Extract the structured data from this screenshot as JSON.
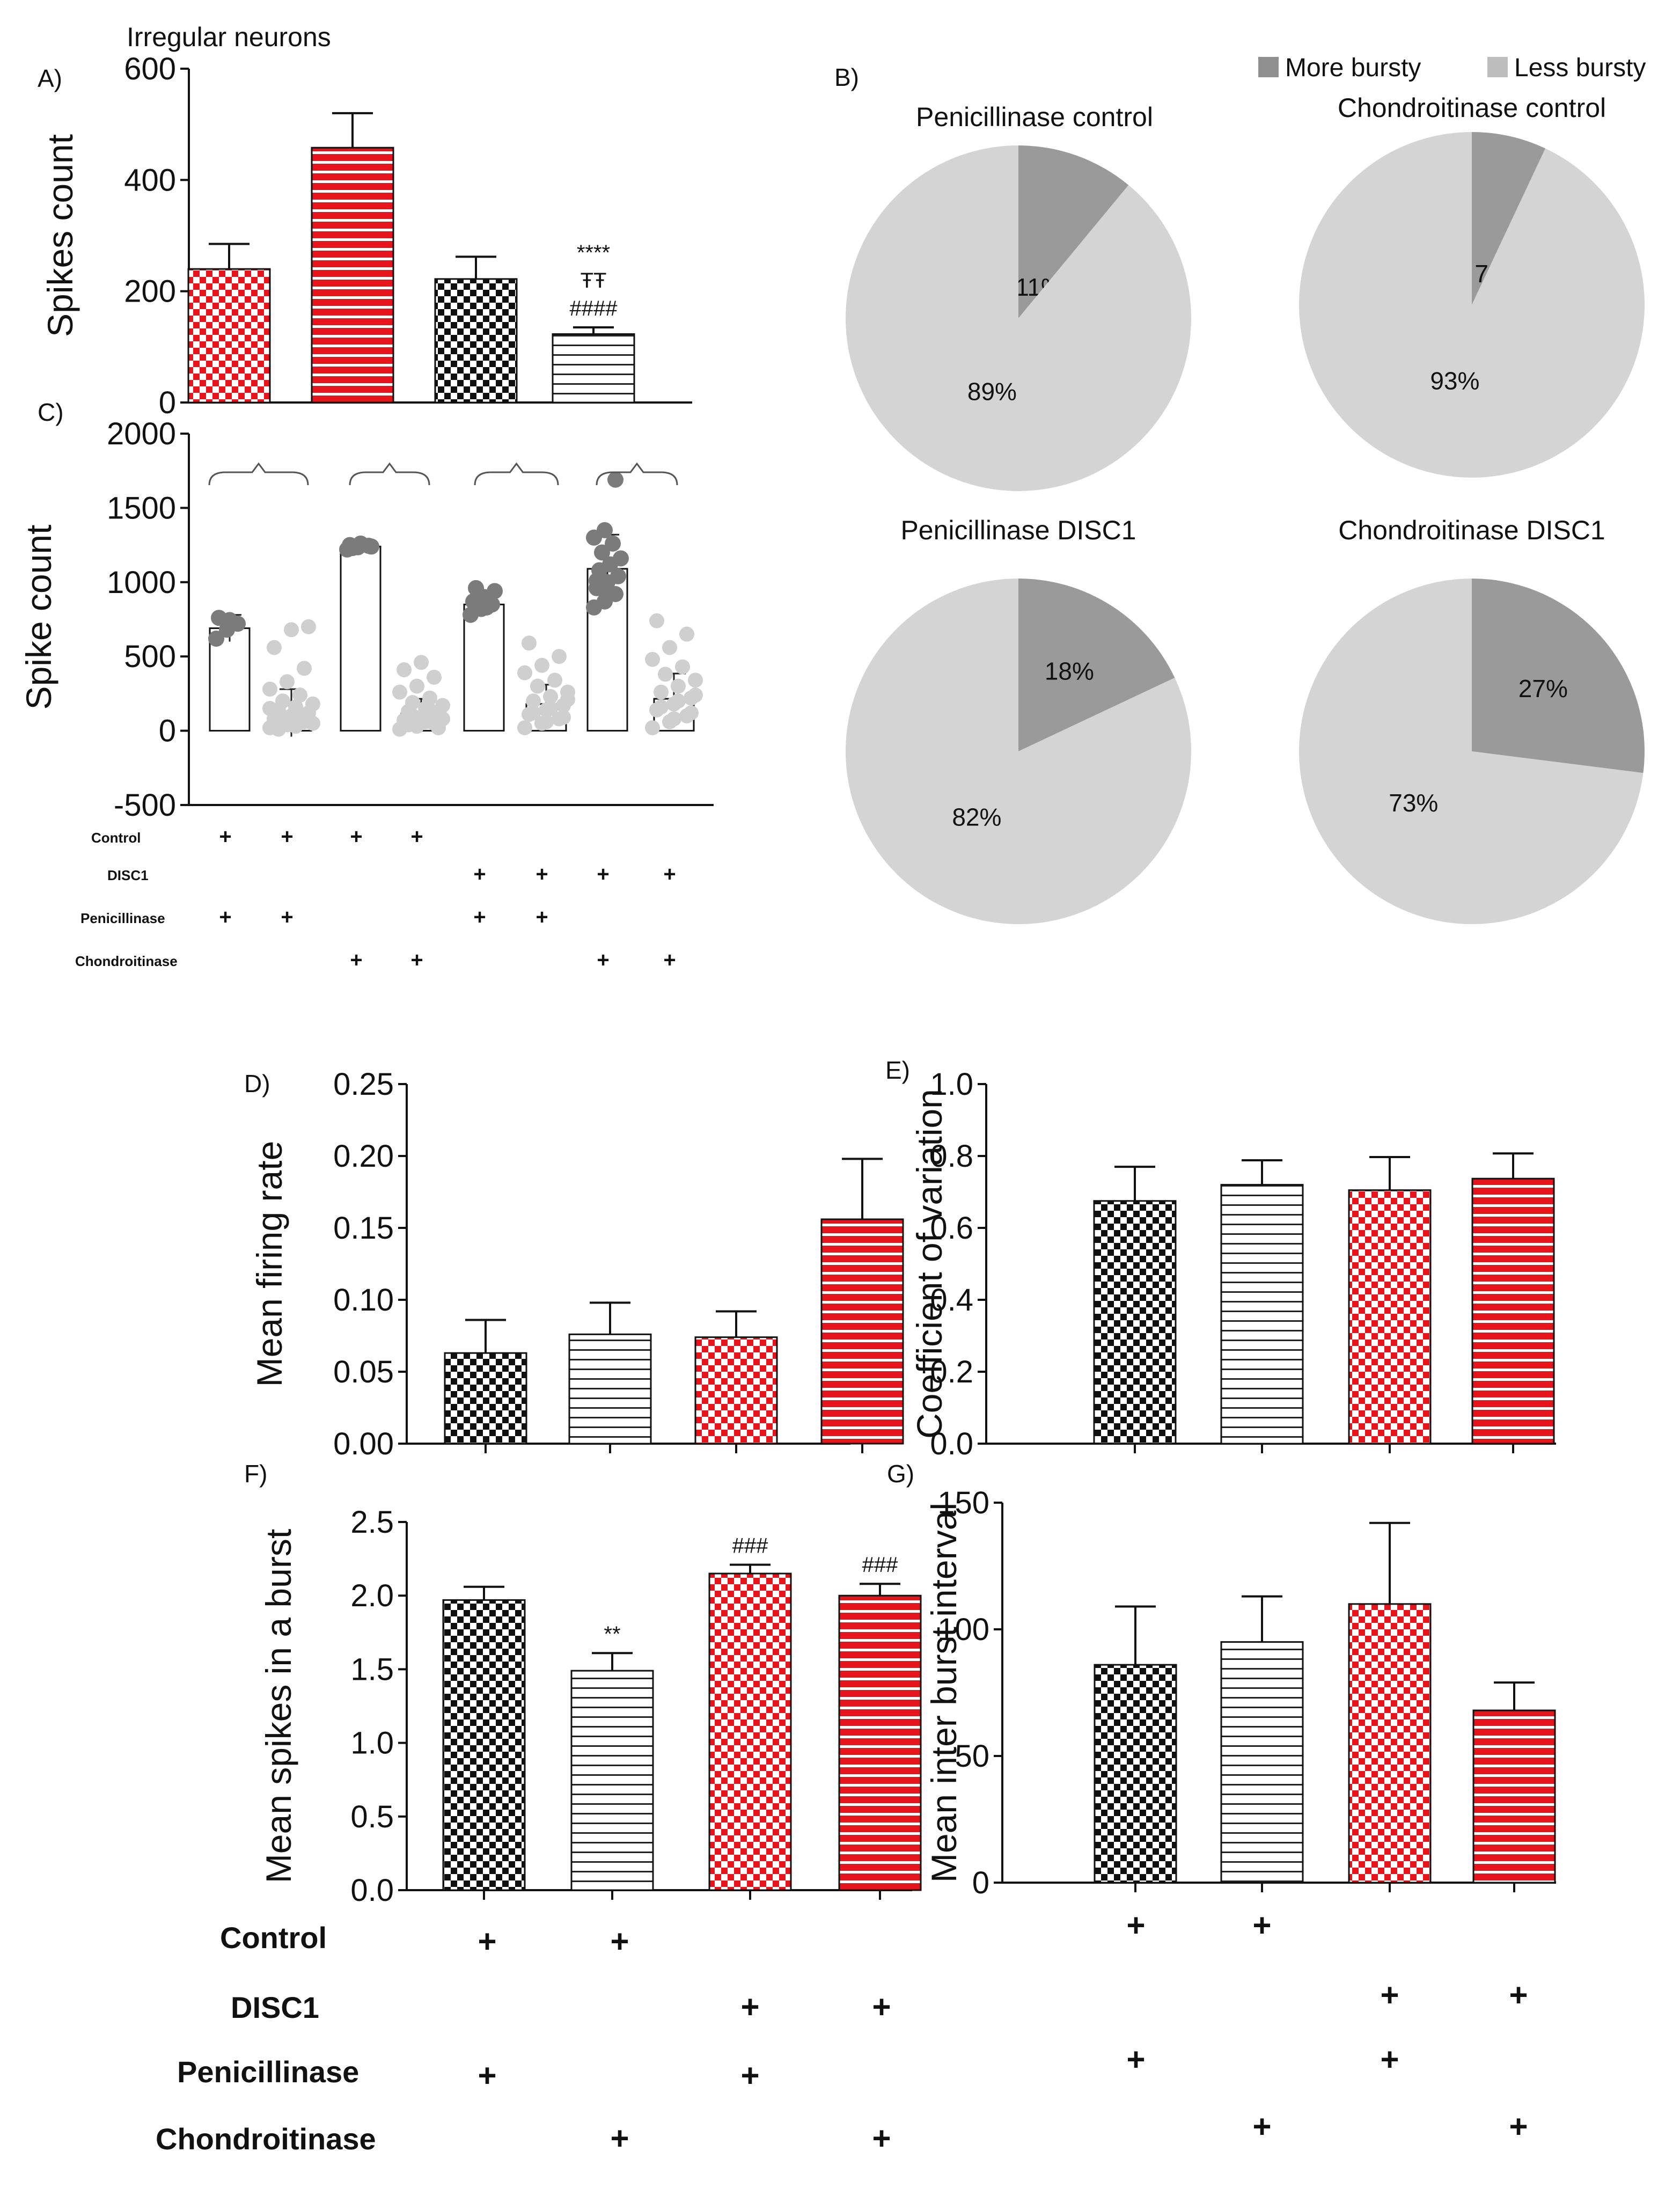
{
  "colors": {
    "red": "#e8141b",
    "black": "#111111",
    "dark_slice": "#9a9a9a",
    "light_slice": "#d4d4d4",
    "scatter_dark": "#7b7b7b",
    "scatter_light": "#cfcfcf"
  },
  "conditions": [
    "Control",
    "DISC1",
    "Penicillinase",
    "Chondroitinase"
  ],
  "chart_data": [
    {
      "id": "A",
      "type": "bar",
      "panel_label": "A)",
      "title": "Irregular neurons",
      "ylabel": "Spikes count",
      "ylim": [
        0,
        600
      ],
      "yticks": [
        "0",
        "200",
        "400",
        "600"
      ],
      "bars": [
        {
          "value": 240,
          "err": 45,
          "pattern": "red-check",
          "annotation": []
        },
        {
          "value": 458,
          "err": 62,
          "pattern": "red-stripe",
          "annotation": []
        },
        {
          "value": 222,
          "err": 40,
          "pattern": "black-check",
          "annotation": []
        },
        {
          "value": 123,
          "err": 12,
          "pattern": "white-stripe",
          "annotation": [
            "****",
            "ŦŦ",
            "####"
          ]
        }
      ]
    },
    {
      "id": "B",
      "type": "pie",
      "panel_label": "B)",
      "legend": [
        "More bursty",
        "Less bursty"
      ],
      "pies": [
        {
          "title": "Penicillinase control",
          "values": [
            11,
            89
          ],
          "labels": [
            "11%",
            "89%"
          ]
        },
        {
          "title": "Chondroitinase control",
          "values": [
            7,
            93
          ],
          "labels": [
            "7%",
            "93%"
          ]
        },
        {
          "title": "Penicillinase DISC1",
          "values": [
            18,
            82
          ],
          "labels": [
            "18%",
            "82%"
          ]
        },
        {
          "title": "Chondroitinase DISC1",
          "values": [
            27,
            73
          ],
          "labels": [
            "27%",
            "73%"
          ]
        }
      ]
    },
    {
      "id": "C",
      "type": "scatter",
      "panel_label": "C)",
      "ylabel": "Spike count",
      "ylim": [
        -500,
        2000
      ],
      "yticks": [
        "-500",
        "0",
        "500",
        "1000",
        "1500",
        "2000"
      ],
      "groups": [
        {
          "mean": 690,
          "err": 90,
          "kind": "dark",
          "points": [
            620,
            680,
            720,
            760,
            745
          ]
        },
        {
          "mean": 120,
          "err": 160,
          "kind": "light",
          "points": [
            20,
            40,
            60,
            80,
            100,
            120,
            140,
            160,
            180,
            200,
            240,
            280,
            330,
            420,
            560,
            680,
            700,
            10,
            30,
            50,
            90,
            110,
            150,
            70
          ]
        },
        {
          "mean": 1240,
          "err": 20,
          "kind": "dark",
          "points": [
            1220,
            1235,
            1245,
            1250,
            1260,
            1240,
            1230
          ]
        },
        {
          "mean": 115,
          "err": 100,
          "kind": "light",
          "points": [
            10,
            30,
            50,
            70,
            90,
            110,
            130,
            150,
            170,
            190,
            220,
            260,
            300,
            360,
            410,
            460,
            20,
            40,
            60,
            80,
            100,
            140
          ]
        },
        {
          "mean": 850,
          "err": 60,
          "kind": "dark",
          "points": [
            780,
            820,
            850,
            870,
            900,
            940,
            960,
            830
          ]
        },
        {
          "mean": 180,
          "err": 130,
          "kind": "light",
          "points": [
            20,
            50,
            80,
            110,
            140,
            170,
            200,
            230,
            260,
            300,
            340,
            390,
            440,
            500,
            590,
            60,
            90,
            120,
            150,
            210
          ]
        },
        {
          "mean": 1090,
          "err": 230,
          "kind": "dark",
          "points": [
            830,
            870,
            920,
            960,
            1000,
            1040,
            1080,
            1120,
            1160,
            1200,
            1260,
            1300,
            1350,
            1690,
            1010,
            940
          ]
        },
        {
          "mean": 215,
          "err": 170,
          "kind": "light",
          "points": [
            20,
            60,
            100,
            140,
            180,
            220,
            260,
            300,
            340,
            380,
            430,
            480,
            560,
            650,
            740,
            80,
            120,
            160,
            200,
            240
          ]
        }
      ],
      "signs": [
        [
          "+",
          "+",
          "+",
          "+",
          "",
          "",
          "",
          ""
        ],
        [
          "",
          "",
          "",
          "",
          "+",
          "+",
          "+",
          "+"
        ],
        [
          "+",
          "+",
          "",
          "",
          "+",
          "+",
          "",
          ""
        ],
        [
          "",
          "",
          "+",
          "+",
          "",
          "",
          "+",
          "+"
        ]
      ]
    },
    {
      "id": "D",
      "type": "bar",
      "panel_label": "D)",
      "ylabel": "Mean firing rate",
      "ylim": [
        0,
        0.25
      ],
      "yticks": [
        "0.00",
        "0.05",
        "0.10",
        "0.15",
        "0.20",
        "0.25"
      ],
      "bars": [
        {
          "value": 0.063,
          "err": 0.023,
          "pattern": "black-check",
          "annotation": []
        },
        {
          "value": 0.076,
          "err": 0.022,
          "pattern": "white-stripe",
          "annotation": []
        },
        {
          "value": 0.074,
          "err": 0.018,
          "pattern": "red-check",
          "annotation": []
        },
        {
          "value": 0.156,
          "err": 0.042,
          "pattern": "red-stripe",
          "annotation": []
        }
      ]
    },
    {
      "id": "E",
      "type": "bar",
      "panel_label": "E)",
      "ylabel": "Coefficient of variation",
      "ylim": [
        0,
        1.0
      ],
      "yticks": [
        "0.0",
        "0.2",
        "0.4",
        "0.6",
        "0.8",
        "1.0"
      ],
      "bars": [
        {
          "value": 0.675,
          "err": 0.095,
          "pattern": "black-check",
          "annotation": []
        },
        {
          "value": 0.72,
          "err": 0.068,
          "pattern": "white-stripe",
          "annotation": []
        },
        {
          "value": 0.705,
          "err": 0.092,
          "pattern": "red-check",
          "annotation": []
        },
        {
          "value": 0.737,
          "err": 0.07,
          "pattern": "red-stripe",
          "annotation": []
        }
      ]
    },
    {
      "id": "F",
      "type": "bar",
      "panel_label": "F)",
      "ylabel": "Mean spikes in a burst",
      "ylim": [
        0,
        2.5
      ],
      "yticks": [
        "0.0",
        "0.5",
        "1.0",
        "1.5",
        "2.0",
        "2.5"
      ],
      "bars": [
        {
          "value": 1.97,
          "err": 0.09,
          "pattern": "black-check",
          "annotation": []
        },
        {
          "value": 1.49,
          "err": 0.12,
          "pattern": "white-stripe",
          "annotation": [
            "**"
          ]
        },
        {
          "value": 2.15,
          "err": 0.06,
          "pattern": "red-check",
          "annotation": [
            "###"
          ]
        },
        {
          "value": 2.0,
          "err": 0.08,
          "pattern": "red-stripe",
          "annotation": [
            "###"
          ]
        }
      ]
    },
    {
      "id": "G",
      "type": "bar",
      "panel_label": "G)",
      "ylabel": "Mean inter burst interval",
      "ylim": [
        0,
        150
      ],
      "yticks": [
        "0",
        "50",
        "100",
        "150"
      ],
      "bars": [
        {
          "value": 86,
          "err": 23,
          "pattern": "black-check",
          "annotation": []
        },
        {
          "value": 95,
          "err": 18,
          "pattern": "white-stripe",
          "annotation": []
        },
        {
          "value": 110,
          "err": 32,
          "pattern": "red-check",
          "annotation": []
        },
        {
          "value": 68,
          "err": 11,
          "pattern": "red-stripe",
          "annotation": []
        }
      ]
    }
  ],
  "bottom_signs": [
    [
      "+",
      "+",
      "",
      ""
    ],
    [
      "",
      "",
      "+",
      "+"
    ],
    [
      "+",
      "",
      "+",
      ""
    ],
    [
      "",
      "+",
      "",
      "+"
    ]
  ]
}
